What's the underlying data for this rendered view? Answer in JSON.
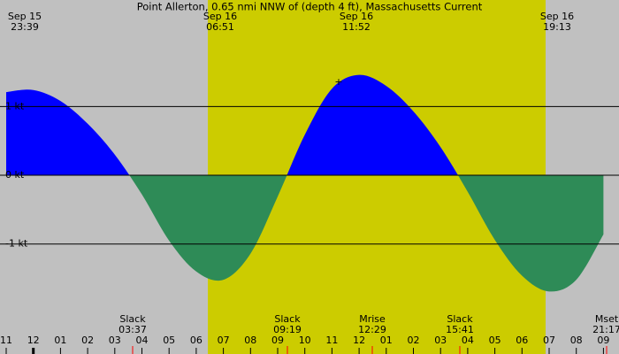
{
  "chart_data": {
    "type": "area",
    "title": "Point Allerton, 0.65 nmi NNW of (depth 4 ft), Massachusetts Current",
    "top_labels": [
      {
        "date": "Sep 15",
        "time": "23:39"
      },
      {
        "date": "Sep 16",
        "time": "06:51"
      },
      {
        "date": "Sep 16",
        "time": "11:52"
      },
      {
        "date": "Sep 16",
        "time": "19:13"
      }
    ],
    "events": [
      {
        "name": "Slack",
        "time": "03:37"
      },
      {
        "name": "Slack",
        "time": "09:19"
      },
      {
        "name": "Mrise",
        "time": "12:29"
      },
      {
        "name": "Slack",
        "time": "15:41"
      },
      {
        "name": "Mset",
        "time": "21:17"
      }
    ],
    "categories": [
      "11",
      "12",
      "01",
      "02",
      "03",
      "04",
      "05",
      "06",
      "07",
      "08",
      "09",
      "10",
      "11",
      "12",
      "01",
      "02",
      "03",
      "04",
      "05",
      "06",
      "07",
      "08",
      "09"
    ],
    "values": [
      1.21,
      1.24,
      1.08,
      0.75,
      0.3,
      -0.28,
      -0.95,
      -1.4,
      -1.52,
      -1.14,
      -0.31,
      0.59,
      1.26,
      1.46,
      1.3,
      0.93,
      0.41,
      -0.24,
      -0.94,
      -1.46,
      -1.69,
      -1.52,
      -0.86
    ],
    "flood_color": "#0000ff",
    "ebb_color": "#2e8b57",
    "day_color": "#cccc00",
    "background": "#c0c0c0",
    "ylim": [
      -2.6,
      2.55
    ],
    "yticks": [
      {
        "value": 1,
        "label": "1 kt"
      },
      {
        "value": 0,
        "label": "0 kt"
      },
      {
        "value": -1,
        "label": "-1 kt"
      }
    ],
    "grid": true
  }
}
